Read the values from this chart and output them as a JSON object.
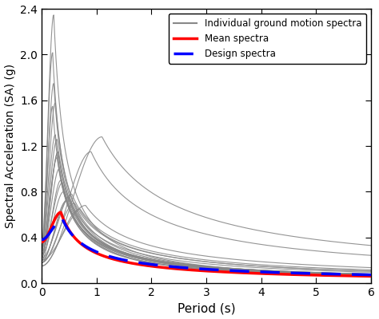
{
  "xlabel": "Period (s)",
  "ylabel": "Spectral Acceleration (SA) (g)",
  "xlim": [
    0,
    6
  ],
  "ylim": [
    0,
    2.4
  ],
  "yticks": [
    0.0,
    0.4,
    0.8,
    1.2,
    1.6,
    2.0,
    2.4
  ],
  "xticks": [
    0,
    1,
    2,
    3,
    4,
    5,
    6
  ],
  "legend_labels": [
    "Individual ground motion spectra",
    "Mean spectra",
    "Design spectra"
  ],
  "individual_color": "#888888",
  "mean_color": "#ff0000",
  "design_color": "#0000ff",
  "background_color": "#ffffff"
}
